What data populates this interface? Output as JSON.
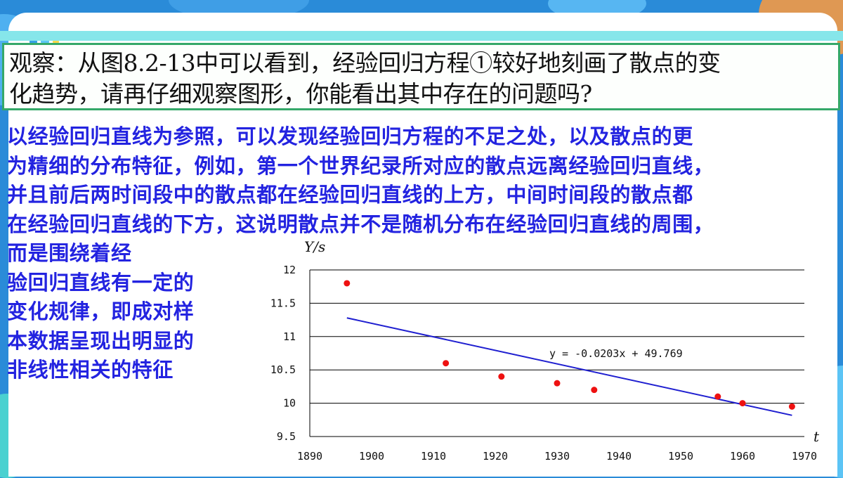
{
  "question": {
    "lines": [
      "观察：从图8.2-13中可以看到，经验回归方程①较好地刻画了散点的变",
      "化趋势，请再仔细观察图形，你能看出其中存在的问题吗?"
    ]
  },
  "answer": {
    "lines": [
      "以经验回归直线为参照，可以发现经验回归方程的不足之处，以及散点的更",
      "为精细的分布特征，例如，第一个世界纪录所对应的散点远离经验回归直线，",
      "并且前后两时间段中的散点都在经验回归直线的上方，中间时间段的散点都",
      "在经验回归直线的下方，这说明散点并不是随机分布在经验回归直线的周围，",
      "而是围绕着经",
      "验回归直线有一定的",
      "变化规律，即成对样",
      "本数据呈现出明显的",
      "非线性相关的特征"
    ]
  },
  "colors": {
    "background": "#2a8bd8",
    "card": "#ffffff",
    "question_border": "#35a869",
    "answer_text": "#2323e0",
    "point": "#ee1111",
    "regression_line": "#1f1fd0",
    "grid": "#000000"
  },
  "chart_data": {
    "type": "scatter",
    "xlabel": "t",
    "ylabel": "Y/s",
    "xlim": [
      1890,
      1970
    ],
    "ylim": [
      9.5,
      12
    ],
    "x_ticks": [
      1890,
      1900,
      1910,
      1920,
      1930,
      1940,
      1950,
      1960,
      1970
    ],
    "y_ticks": [
      9.5,
      10,
      10.5,
      11,
      11.5,
      12
    ],
    "x_tick_labels": [
      "1890",
      "1900",
      "1910",
      "1920",
      "1930",
      "1940",
      "1950",
      "1960",
      "1970"
    ],
    "y_tick_labels": [
      "9.5",
      "10",
      "10.5",
      "11",
      "11.5",
      "12"
    ],
    "horizontal_grid": true,
    "points": [
      {
        "x": 1896,
        "y": 11.8
      },
      {
        "x": 1912,
        "y": 10.6
      },
      {
        "x": 1921,
        "y": 10.4
      },
      {
        "x": 1930,
        "y": 10.3
      },
      {
        "x": 1936,
        "y": 10.2
      },
      {
        "x": 1956,
        "y": 10.1
      },
      {
        "x": 1960,
        "y": 10.0
      },
      {
        "x": 1968,
        "y": 9.95
      }
    ],
    "regression": {
      "slope": -0.0203,
      "intercept": 49.769,
      "x_start": 1896,
      "x_end": 1968,
      "equation_label": "y = -0.0203x + 49.769"
    }
  }
}
